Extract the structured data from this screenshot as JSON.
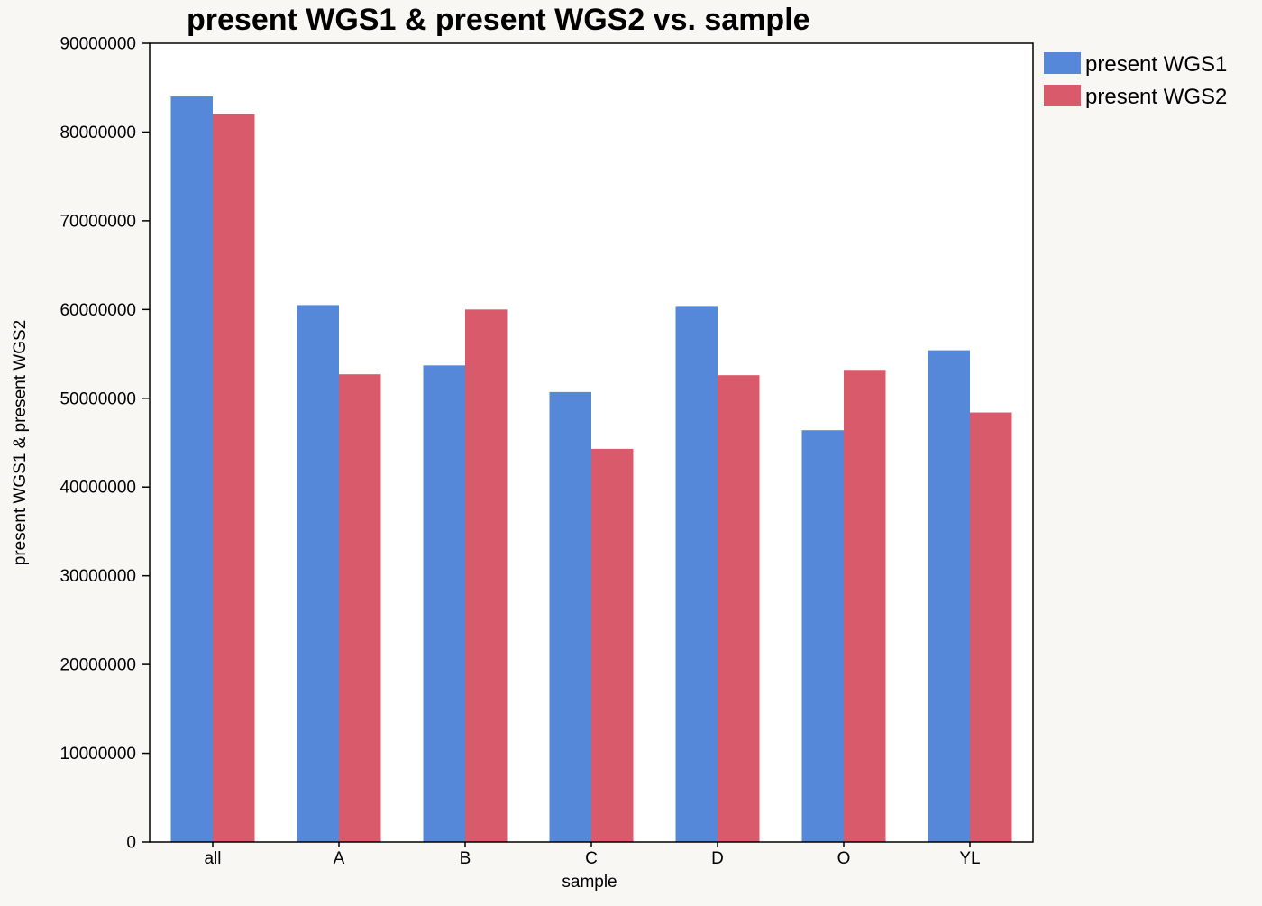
{
  "chart_data": {
    "type": "bar",
    "title": "present WGS1 & present WGS2 vs. sample",
    "xlabel": "sample",
    "ylabel": "present WGS1 & present WGS2",
    "categories": [
      "all",
      "A",
      "B",
      "C",
      "D",
      "O",
      "YL"
    ],
    "series": [
      {
        "name": "present WGS1",
        "color": "#5588d8",
        "values": [
          84000000,
          60500000,
          53700000,
          50700000,
          60400000,
          46400000,
          55400000
        ]
      },
      {
        "name": "present WGS2",
        "color": "#d95a6a",
        "values": [
          82000000,
          52700000,
          60000000,
          44300000,
          52600000,
          53200000,
          48400000
        ]
      }
    ],
    "ylim": [
      0,
      90000000
    ],
    "yticks": [
      0,
      10000000,
      20000000,
      30000000,
      40000000,
      50000000,
      60000000,
      70000000,
      80000000,
      90000000
    ],
    "ytick_labels": [
      "0",
      "10000000",
      "20000000",
      "30000000",
      "40000000",
      "50000000",
      "60000000",
      "70000000",
      "80000000",
      "90000000"
    ],
    "grid": false,
    "legend_position": "right"
  }
}
